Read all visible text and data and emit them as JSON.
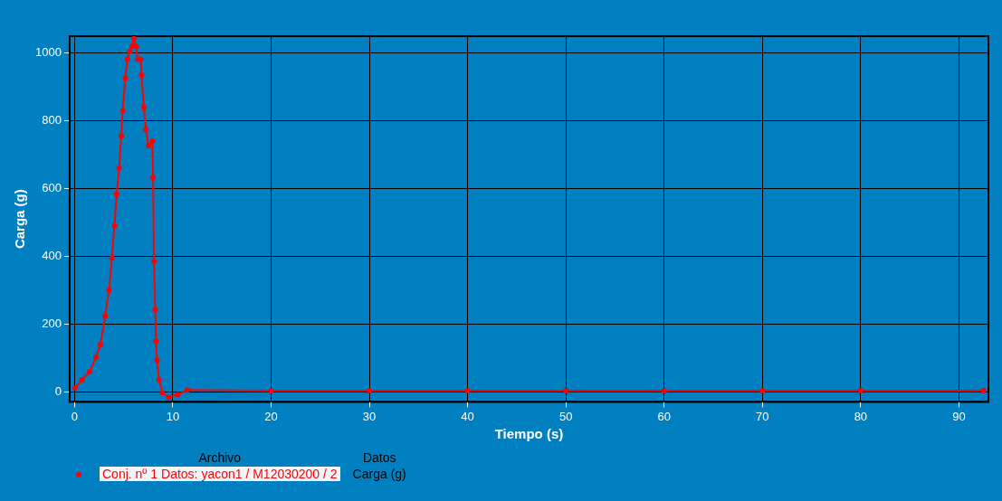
{
  "chart_data": {
    "type": "line",
    "xlabel": "Tiempo (s)",
    "ylabel": "Carga (g)",
    "legend_title": "Archivo",
    "annotations": [
      "Datos",
      "Carga (g)"
    ],
    "xlim": [
      -0.5,
      93
    ],
    "xticks": [
      0,
      10,
      20,
      30,
      40,
      50,
      60,
      70,
      80,
      90
    ],
    "ylim": [
      -30,
      1050
    ],
    "yticks": [
      0,
      200,
      400,
      600,
      800,
      1000
    ],
    "grid": true,
    "legend": "bottom left",
    "marker": "circle",
    "line_style": "solid",
    "series": [
      {
        "name": "Conj. nº 1 Datos: yacon1 / M12030200 / 2",
        "color": "#ff0000",
        "x": [
          0.07,
          0.75,
          1.54,
          2.17,
          2.64,
          3.11,
          3.52,
          3.8,
          4.06,
          4.28,
          4.53,
          4.75,
          4.9,
          5.16,
          5.38,
          5.63,
          5.85,
          6.04,
          6.25,
          6.42,
          6.73,
          6.82,
          7.05,
          7.26,
          7.52,
          7.92,
          7.99,
          8.08,
          8.21,
          8.3,
          8.4,
          8.6,
          8.93,
          9.56,
          10.5,
          11.5,
          20,
          30,
          40,
          50,
          60,
          70,
          80,
          92.5
        ],
        "values": [
          11,
          35,
          59,
          101,
          139,
          224,
          300,
          395,
          490,
          584,
          660,
          755,
          830,
          925,
          982,
          1006,
          1020,
          1043,
          1020,
          982,
          982,
          935,
          840,
          774,
          726,
          740,
          632,
          385,
          243,
          149,
          92,
          35,
          -3,
          -17,
          -8,
          5,
          3,
          3,
          3,
          3,
          3,
          3,
          3,
          3
        ]
      }
    ]
  }
}
